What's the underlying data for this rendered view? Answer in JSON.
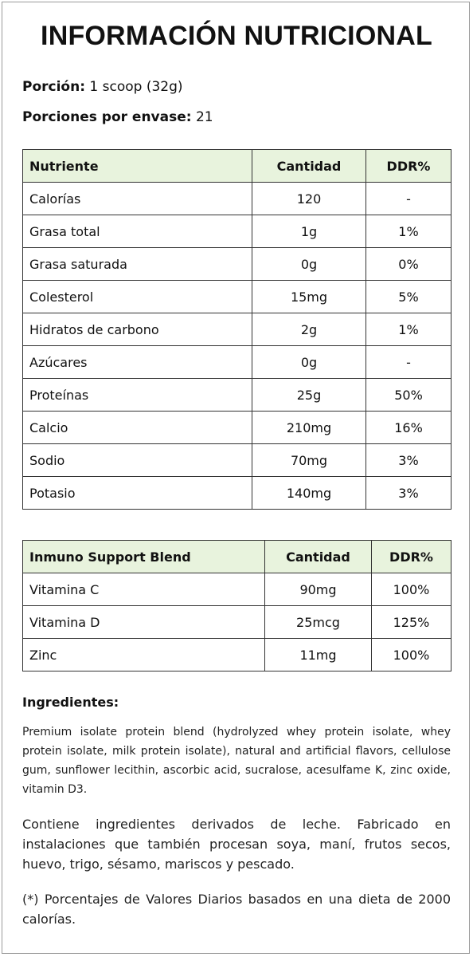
{
  "title": "INFORMACIÓN NUTRICIONAL",
  "serving": {
    "label": "Porción:",
    "value": "1 scoop (32g)"
  },
  "servings_per_container": {
    "label": "Porciones por envase:",
    "value": "21"
  },
  "nutrition_table": {
    "headers": [
      "Nutriente",
      "Cantidad",
      "DDR%"
    ],
    "rows": [
      [
        "Calorías",
        "120",
        "-"
      ],
      [
        "Grasa total",
        "1g",
        "1%"
      ],
      [
        "Grasa saturada",
        "0g",
        "0%"
      ],
      [
        "Colesterol",
        "15mg",
        "5%"
      ],
      [
        "Hidratos de carbono",
        "2g",
        "1%"
      ],
      [
        "Azúcares",
        "0g",
        "-"
      ],
      [
        "Proteínas",
        "25g",
        "50%"
      ],
      [
        "Calcio",
        "210mg",
        "16%"
      ],
      [
        "Sodio",
        "70mg",
        "3%"
      ],
      [
        "Potasio",
        "140mg",
        "3%"
      ]
    ]
  },
  "blend_table": {
    "headers": [
      "Inmuno Support Blend",
      "Cantidad",
      "DDR%"
    ],
    "rows": [
      [
        "Vitamina C",
        "90mg",
        "100%"
      ],
      [
        "Vitamina D",
        "25mcg",
        "125%"
      ],
      [
        "Zinc",
        "11mg",
        "100%"
      ]
    ]
  },
  "ingredients": {
    "heading": "Ingredientes:",
    "text": "Premium isolate protein blend (hydrolyzed whey protein isolate, whey protein isolate, milk protein isolate), natural and artificial flavors, cellulose gum, sunflower lecithin, ascorbic acid, sucralose, acesulfame K, zinc oxide, vitamin D3."
  },
  "allergen_note": "Contiene ingredientes derivados de leche. Fabricado en instalaciones que también procesan soya, maní, frutos secos, huevo, trigo, sésamo, mariscos y pescado.",
  "footnote": "(*) Porcentajes de Valores Diarios basados en una dieta de 2000 calorías.",
  "colors": {
    "header_bg": "#e8f3dd",
    "border": "#333333",
    "text": "#111111"
  }
}
